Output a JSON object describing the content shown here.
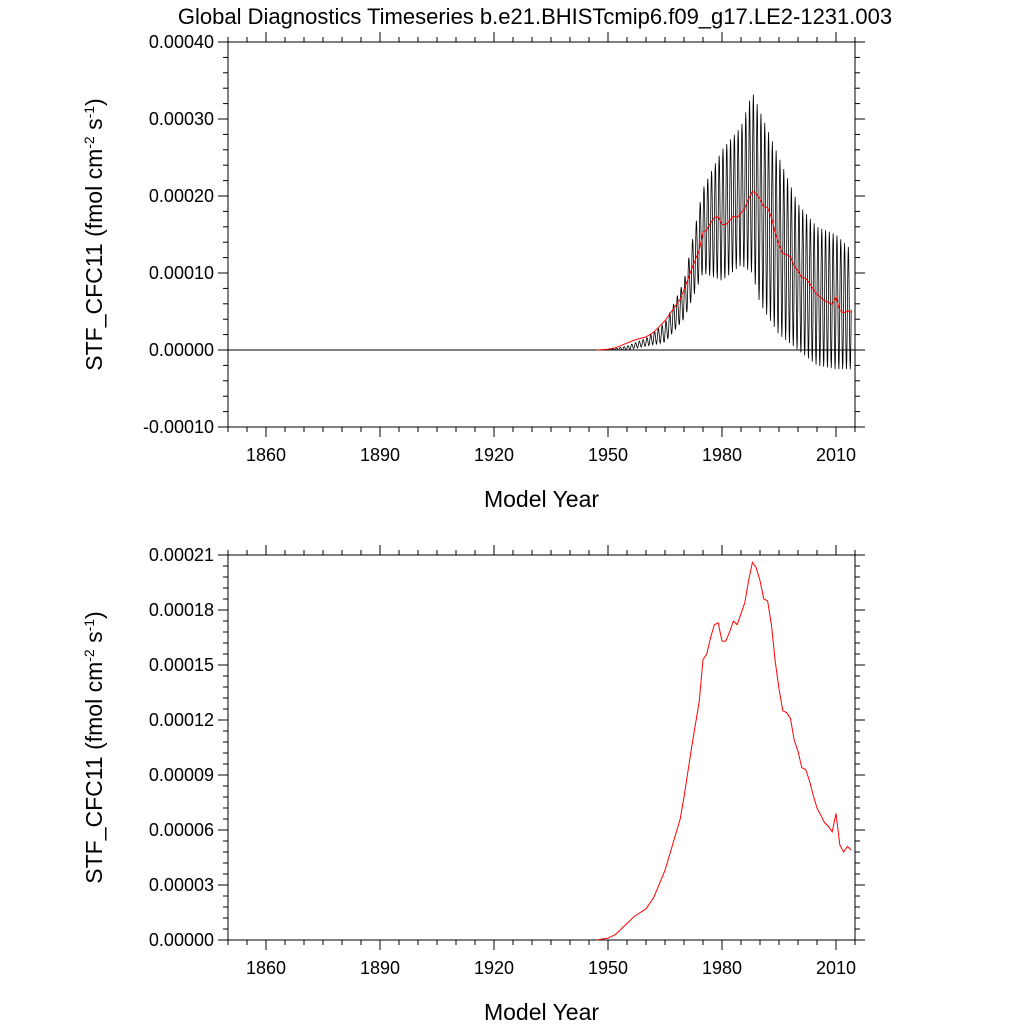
{
  "title": "Global Diagnostics Timeseries b.e21.BHISTcmip6.f09_g17.LE2-1231.003",
  "colors": {
    "monthly": "#000000",
    "annual": "#ff0000",
    "zero_line": "#000000"
  },
  "chart_data": [
    {
      "type": "line",
      "title": "Global Diagnostics Timeseries b.e21.BHISTcmip6.f09_g17.LE2-1231.003",
      "xlabel": "Model Year",
      "ylabel": {
        "base": "STF_CFC11 (fmol cm",
        "sup1": "-2",
        "mid": " s",
        "sup2": "-1",
        "end": ")"
      },
      "xlim": [
        1850,
        2015
      ],
      "ylim": [
        -0.0001,
        0.0004
      ],
      "x_ticks": [
        1860,
        1890,
        1920,
        1950,
        1980,
        2010
      ],
      "x_tick_labels": [
        "1860",
        "1890",
        "1920",
        "1950",
        "1980",
        "2010"
      ],
      "y_ticks": [
        -0.0001,
        0.0,
        0.0001,
        0.0002,
        0.0003,
        0.0004
      ],
      "y_tick_labels": [
        "-0.00010",
        "0.00000",
        "0.00010",
        "0.00020",
        "0.00030",
        "0.00040"
      ],
      "zero_line": true,
      "series": [
        {
          "color": "#000000",
          "style": "monthly-seasonal",
          "years": [
            1950,
            1955,
            1960,
            1965,
            1970,
            1975,
            1980,
            1985,
            1988,
            1990,
            1995,
            2000,
            2005,
            2010,
            2014
          ],
          "max": [
            5e-07,
            5e-06,
            1.5e-05,
            3.5e-05,
            9e-05,
            0.00021,
            0.00026,
            0.00029,
            0.000335,
            0.00031,
            0.00025,
            0.00019,
            0.00016,
            0.00015,
            0.00013
          ],
          "min": [
            0.0,
            0.0,
            5e-06,
            1e-05,
            4e-05,
            0.0001,
            9e-05,
            0.00011,
            0.0001,
            6e-05,
            2e-05,
            0.0,
            -2e-05,
            -2.5e-05,
            -2.5e-05
          ]
        },
        {
          "color": "#ff0000",
          "style": "annual",
          "x": [
            1947,
            1950,
            1952,
            1955,
            1957,
            1960,
            1962,
            1965,
            1967,
            1969,
            1970,
            1972,
            1974,
            1975,
            1976,
            1977,
            1978,
            1979,
            1980,
            1981,
            1982,
            1983,
            1984,
            1985,
            1986,
            1987,
            1988,
            1989,
            1990,
            1991,
            1992,
            1993,
            1994,
            1995,
            1996,
            1997,
            1998,
            1999,
            2000,
            2001,
            2002,
            2003,
            2004,
            2005,
            2006,
            2007,
            2008,
            2009,
            2010,
            2011,
            2012,
            2013,
            2014
          ],
          "y": [
            0.0,
            1e-06,
            3e-06,
            9e-06,
            1.3e-05,
            1.7e-05,
            2.3e-05,
            3.8e-05,
            5.2e-05,
            6.6e-05,
            7.8e-05,
            0.000105,
            0.00013,
            0.000153,
            0.000156,
            0.000165,
            0.000172,
            0.000173,
            0.000163,
            0.000163,
            0.000168,
            0.000174,
            0.000172,
            0.000178,
            0.000184,
            0.000196,
            0.000206,
            0.000203,
            0.000196,
            0.000186,
            0.000185,
            0.000172,
            0.000152,
            0.000137,
            0.000125,
            0.000124,
            0.000121,
            0.000109,
            0.000103,
            9.4e-05,
            9.3e-05,
            8.7e-05,
            7.9e-05,
            7.2e-05,
            6.8e-05,
            6.4e-05,
            6.2e-05,
            5.9e-05,
            6.9e-05,
            5.2e-05,
            4.8e-05,
            5.1e-05,
            4.9e-05
          ]
        }
      ]
    },
    {
      "type": "line",
      "title": "",
      "xlabel": "Model Year",
      "ylabel": {
        "base": "STF_CFC11 (fmol cm",
        "sup1": "-2",
        "mid": " s",
        "sup2": "-1",
        "end": ")"
      },
      "xlim": [
        1850,
        2015
      ],
      "ylim": [
        0.0,
        0.00021
      ],
      "x_ticks": [
        1860,
        1890,
        1920,
        1950,
        1980,
        2010
      ],
      "x_tick_labels": [
        "1860",
        "1890",
        "1920",
        "1950",
        "1980",
        "2010"
      ],
      "y_ticks": [
        0.0,
        3e-05,
        6e-05,
        9e-05,
        0.00012,
        0.00015,
        0.00018,
        0.00021
      ],
      "y_tick_labels": [
        "0.00000",
        "0.00003",
        "0.00006",
        "0.00009",
        "0.00012",
        "0.00015",
        "0.00018",
        "0.00021"
      ],
      "zero_line": false,
      "series": [
        {
          "color": "#ff0000",
          "style": "annual",
          "x": [
            1947,
            1950,
            1952,
            1955,
            1957,
            1960,
            1962,
            1965,
            1967,
            1969,
            1970,
            1972,
            1974,
            1975,
            1976,
            1977,
            1978,
            1979,
            1980,
            1981,
            1982,
            1983,
            1984,
            1985,
            1986,
            1987,
            1988,
            1989,
            1990,
            1991,
            1992,
            1993,
            1994,
            1995,
            1996,
            1997,
            1998,
            1999,
            2000,
            2001,
            2002,
            2003,
            2004,
            2005,
            2006,
            2007,
            2008,
            2009,
            2010,
            2011,
            2012,
            2013,
            2014
          ],
          "y": [
            0.0,
            1e-06,
            3e-06,
            9e-06,
            1.3e-05,
            1.7e-05,
            2.3e-05,
            3.8e-05,
            5.2e-05,
            6.6e-05,
            7.8e-05,
            0.000105,
            0.00013,
            0.000153,
            0.000156,
            0.000165,
            0.000172,
            0.000173,
            0.000163,
            0.000163,
            0.000168,
            0.000174,
            0.000172,
            0.000178,
            0.000184,
            0.000196,
            0.000206,
            0.000203,
            0.000196,
            0.000186,
            0.000185,
            0.000172,
            0.000152,
            0.000137,
            0.000125,
            0.000124,
            0.000121,
            0.000109,
            0.000103,
            9.4e-05,
            9.3e-05,
            8.7e-05,
            7.9e-05,
            7.2e-05,
            6.8e-05,
            6.4e-05,
            6.2e-05,
            5.9e-05,
            6.9e-05,
            5.2e-05,
            4.8e-05,
            5.1e-05,
            4.9e-05
          ]
        }
      ]
    }
  ]
}
